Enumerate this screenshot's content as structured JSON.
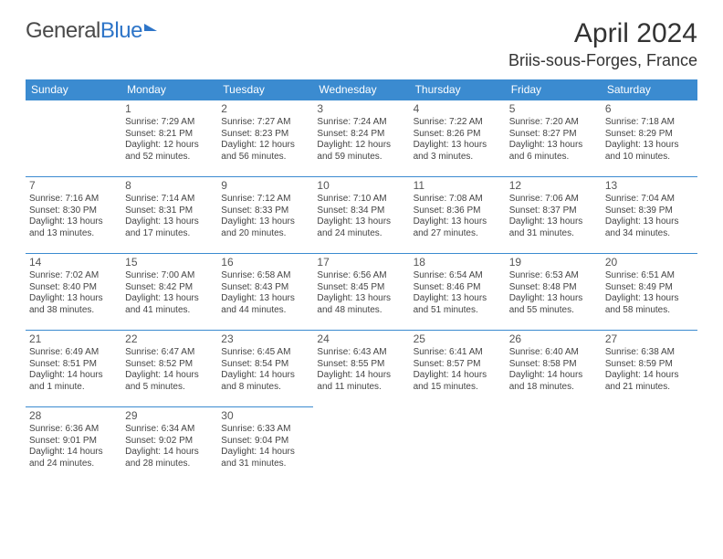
{
  "logo": {
    "text_gray": "General",
    "text_blue": "Blue"
  },
  "title": "April 2024",
  "location": "Briis-sous-Forges, France",
  "colors": {
    "header_bg": "#3b8bd0",
    "header_text": "#ffffff",
    "cell_border": "#3b8bd0",
    "body_text": "#444444",
    "title_text": "#333333",
    "logo_gray": "#4a4a4a",
    "logo_blue": "#2e75c8",
    "background": "#ffffff"
  },
  "typography": {
    "month_title_fontsize": 30,
    "location_fontsize": 18,
    "logo_fontsize": 24,
    "dayheader_fontsize": 12,
    "daynum_fontsize": 12,
    "body_fontsize": 10
  },
  "day_headers": [
    "Sunday",
    "Monday",
    "Tuesday",
    "Wednesday",
    "Thursday",
    "Friday",
    "Saturday"
  ],
  "weeks": [
    [
      null,
      {
        "n": "1",
        "sr": "Sunrise: 7:29 AM",
        "ss": "Sunset: 8:21 PM",
        "d1": "Daylight: 12 hours",
        "d2": "and 52 minutes."
      },
      {
        "n": "2",
        "sr": "Sunrise: 7:27 AM",
        "ss": "Sunset: 8:23 PM",
        "d1": "Daylight: 12 hours",
        "d2": "and 56 minutes."
      },
      {
        "n": "3",
        "sr": "Sunrise: 7:24 AM",
        "ss": "Sunset: 8:24 PM",
        "d1": "Daylight: 12 hours",
        "d2": "and 59 minutes."
      },
      {
        "n": "4",
        "sr": "Sunrise: 7:22 AM",
        "ss": "Sunset: 8:26 PM",
        "d1": "Daylight: 13 hours",
        "d2": "and 3 minutes."
      },
      {
        "n": "5",
        "sr": "Sunrise: 7:20 AM",
        "ss": "Sunset: 8:27 PM",
        "d1": "Daylight: 13 hours",
        "d2": "and 6 minutes."
      },
      {
        "n": "6",
        "sr": "Sunrise: 7:18 AM",
        "ss": "Sunset: 8:29 PM",
        "d1": "Daylight: 13 hours",
        "d2": "and 10 minutes."
      }
    ],
    [
      {
        "n": "7",
        "sr": "Sunrise: 7:16 AM",
        "ss": "Sunset: 8:30 PM",
        "d1": "Daylight: 13 hours",
        "d2": "and 13 minutes."
      },
      {
        "n": "8",
        "sr": "Sunrise: 7:14 AM",
        "ss": "Sunset: 8:31 PM",
        "d1": "Daylight: 13 hours",
        "d2": "and 17 minutes."
      },
      {
        "n": "9",
        "sr": "Sunrise: 7:12 AM",
        "ss": "Sunset: 8:33 PM",
        "d1": "Daylight: 13 hours",
        "d2": "and 20 minutes."
      },
      {
        "n": "10",
        "sr": "Sunrise: 7:10 AM",
        "ss": "Sunset: 8:34 PM",
        "d1": "Daylight: 13 hours",
        "d2": "and 24 minutes."
      },
      {
        "n": "11",
        "sr": "Sunrise: 7:08 AM",
        "ss": "Sunset: 8:36 PM",
        "d1": "Daylight: 13 hours",
        "d2": "and 27 minutes."
      },
      {
        "n": "12",
        "sr": "Sunrise: 7:06 AM",
        "ss": "Sunset: 8:37 PM",
        "d1": "Daylight: 13 hours",
        "d2": "and 31 minutes."
      },
      {
        "n": "13",
        "sr": "Sunrise: 7:04 AM",
        "ss": "Sunset: 8:39 PM",
        "d1": "Daylight: 13 hours",
        "d2": "and 34 minutes."
      }
    ],
    [
      {
        "n": "14",
        "sr": "Sunrise: 7:02 AM",
        "ss": "Sunset: 8:40 PM",
        "d1": "Daylight: 13 hours",
        "d2": "and 38 minutes."
      },
      {
        "n": "15",
        "sr": "Sunrise: 7:00 AM",
        "ss": "Sunset: 8:42 PM",
        "d1": "Daylight: 13 hours",
        "d2": "and 41 minutes."
      },
      {
        "n": "16",
        "sr": "Sunrise: 6:58 AM",
        "ss": "Sunset: 8:43 PM",
        "d1": "Daylight: 13 hours",
        "d2": "and 44 minutes."
      },
      {
        "n": "17",
        "sr": "Sunrise: 6:56 AM",
        "ss": "Sunset: 8:45 PM",
        "d1": "Daylight: 13 hours",
        "d2": "and 48 minutes."
      },
      {
        "n": "18",
        "sr": "Sunrise: 6:54 AM",
        "ss": "Sunset: 8:46 PM",
        "d1": "Daylight: 13 hours",
        "d2": "and 51 minutes."
      },
      {
        "n": "19",
        "sr": "Sunrise: 6:53 AM",
        "ss": "Sunset: 8:48 PM",
        "d1": "Daylight: 13 hours",
        "d2": "and 55 minutes."
      },
      {
        "n": "20",
        "sr": "Sunrise: 6:51 AM",
        "ss": "Sunset: 8:49 PM",
        "d1": "Daylight: 13 hours",
        "d2": "and 58 minutes."
      }
    ],
    [
      {
        "n": "21",
        "sr": "Sunrise: 6:49 AM",
        "ss": "Sunset: 8:51 PM",
        "d1": "Daylight: 14 hours",
        "d2": "and 1 minute."
      },
      {
        "n": "22",
        "sr": "Sunrise: 6:47 AM",
        "ss": "Sunset: 8:52 PM",
        "d1": "Daylight: 14 hours",
        "d2": "and 5 minutes."
      },
      {
        "n": "23",
        "sr": "Sunrise: 6:45 AM",
        "ss": "Sunset: 8:54 PM",
        "d1": "Daylight: 14 hours",
        "d2": "and 8 minutes."
      },
      {
        "n": "24",
        "sr": "Sunrise: 6:43 AM",
        "ss": "Sunset: 8:55 PM",
        "d1": "Daylight: 14 hours",
        "d2": "and 11 minutes."
      },
      {
        "n": "25",
        "sr": "Sunrise: 6:41 AM",
        "ss": "Sunset: 8:57 PM",
        "d1": "Daylight: 14 hours",
        "d2": "and 15 minutes."
      },
      {
        "n": "26",
        "sr": "Sunrise: 6:40 AM",
        "ss": "Sunset: 8:58 PM",
        "d1": "Daylight: 14 hours",
        "d2": "and 18 minutes."
      },
      {
        "n": "27",
        "sr": "Sunrise: 6:38 AM",
        "ss": "Sunset: 8:59 PM",
        "d1": "Daylight: 14 hours",
        "d2": "and 21 minutes."
      }
    ],
    [
      {
        "n": "28",
        "sr": "Sunrise: 6:36 AM",
        "ss": "Sunset: 9:01 PM",
        "d1": "Daylight: 14 hours",
        "d2": "and 24 minutes."
      },
      {
        "n": "29",
        "sr": "Sunrise: 6:34 AM",
        "ss": "Sunset: 9:02 PM",
        "d1": "Daylight: 14 hours",
        "d2": "and 28 minutes."
      },
      {
        "n": "30",
        "sr": "Sunrise: 6:33 AM",
        "ss": "Sunset: 9:04 PM",
        "d1": "Daylight: 14 hours",
        "d2": "and 31 minutes."
      },
      null,
      null,
      null,
      null
    ]
  ]
}
